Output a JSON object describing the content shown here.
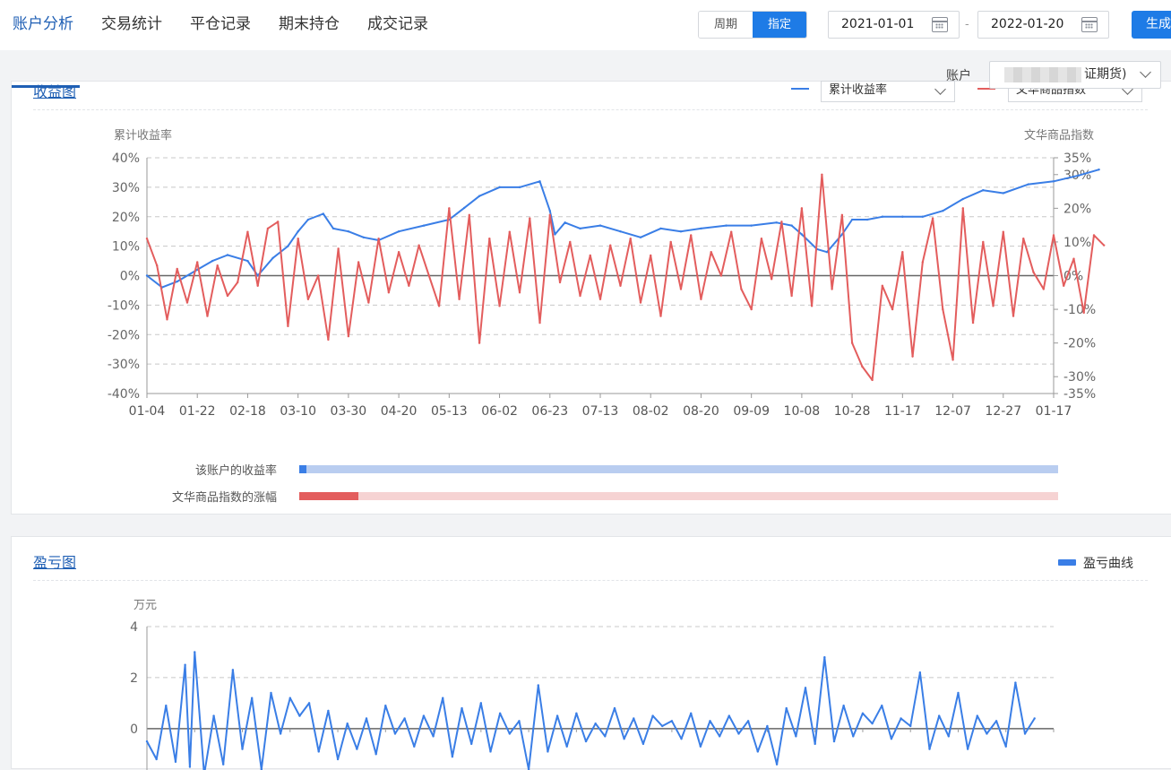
{
  "nav": [
    "账户分析",
    "交易统计",
    "平仓记录",
    "期末持仓",
    "成交记录"
  ],
  "segment": {
    "options": [
      "周期",
      "指定"
    ],
    "selected": "指定"
  },
  "date_from": "2021-01-01",
  "date_to": "2022-01-20",
  "date_sep": "-",
  "generate_label": "生成",
  "account": {
    "label": "账户",
    "value": "证期货)"
  },
  "card1": {
    "title": "收益图",
    "legend_left": "累计收益率",
    "legend_right": "文华商品指数",
    "bars": [
      {
        "label": "该账户的收益率",
        "value": 0.01,
        "fill": "#3a7ee6",
        "track": "#b9cdf0"
      },
      {
        "label": "文华商品指数的涨幅",
        "value": 0.078,
        "fill": "#e35d5d",
        "track": "#f6d3d3"
      }
    ]
  },
  "card2": {
    "title": "盈亏图",
    "legend": "盈亏曲线"
  },
  "colors": {
    "blue": "#3a7ee6",
    "red": "#e35d5d"
  },
  "chart_data": [
    {
      "type": "line",
      "ylabel": "累计收益率",
      "y2label": "文华商品指数",
      "x_ticks": [
        "01-04",
        "01-22",
        "02-18",
        "03-10",
        "03-30",
        "04-20",
        "05-13",
        "06-02",
        "06-23",
        "07-13",
        "08-02",
        "08-20",
        "09-09",
        "10-08",
        "10-28",
        "11-17",
        "12-07",
        "12-27",
        "01-17"
      ],
      "y_ticks": [
        "40%",
        "30%",
        "20%",
        "10%",
        "0%",
        "-10%",
        "-20%",
        "-30%",
        "-40%"
      ],
      "y_range": [
        -40,
        40
      ],
      "y2_ticks": [
        "35%",
        "30%",
        "20%",
        "10%",
        "0%",
        "-10%",
        "-20%",
        "-30%",
        "-35%"
      ],
      "y2_range": [
        -35,
        35
      ],
      "grid": true,
      "series": [
        {
          "name": "累计收益率",
          "axis": "left",
          "color": "#3a7ee6",
          "points": [
            [
              0,
              0
            ],
            [
              0.3,
              -4
            ],
            [
              0.6,
              -2
            ],
            [
              1,
              2
            ],
            [
              1.3,
              5
            ],
            [
              1.6,
              7
            ],
            [
              2,
              5
            ],
            [
              2.2,
              0
            ],
            [
              2.5,
              6
            ],
            [
              2.8,
              10
            ],
            [
              3,
              15
            ],
            [
              3.2,
              19
            ],
            [
              3.5,
              21
            ],
            [
              3.7,
              16
            ],
            [
              4,
              15
            ],
            [
              4.3,
              13
            ],
            [
              4.6,
              12
            ],
            [
              5,
              15
            ],
            [
              5.5,
              17
            ],
            [
              6,
              19
            ],
            [
              6.3,
              23
            ],
            [
              6.6,
              27
            ],
            [
              7,
              30
            ],
            [
              7.4,
              30
            ],
            [
              7.8,
              32
            ],
            [
              8,
              22
            ],
            [
              8.1,
              14
            ],
            [
              8.3,
              18
            ],
            [
              8.6,
              16
            ],
            [
              9,
              17
            ],
            [
              9.4,
              15
            ],
            [
              9.8,
              13
            ],
            [
              10.2,
              16
            ],
            [
              10.6,
              15
            ],
            [
              11,
              16
            ],
            [
              11.5,
              17
            ],
            [
              12,
              17
            ],
            [
              12.5,
              18
            ],
            [
              12.8,
              17
            ],
            [
              13,
              14
            ],
            [
              13.3,
              9
            ],
            [
              13.5,
              8
            ],
            [
              13.8,
              14
            ],
            [
              14,
              19
            ],
            [
              14.3,
              19
            ],
            [
              14.6,
              20
            ],
            [
              15,
              20
            ],
            [
              15.4,
              20
            ],
            [
              15.8,
              22
            ],
            [
              16.2,
              26
            ],
            [
              16.6,
              29
            ],
            [
              17,
              28
            ],
            [
              17.5,
              31
            ],
            [
              18,
              32
            ],
            [
              18.5,
              34
            ],
            [
              18.9,
              36
            ]
          ]
        },
        {
          "name": "文华商品指数",
          "axis": "right",
          "color": "#e35d5d",
          "points": [
            [
              0,
              11
            ],
            [
              0.2,
              3
            ],
            [
              0.4,
              -13
            ],
            [
              0.6,
              2
            ],
            [
              0.8,
              -8
            ],
            [
              1,
              4
            ],
            [
              1.2,
              -12
            ],
            [
              1.4,
              3
            ],
            [
              1.6,
              -6
            ],
            [
              1.8,
              -2
            ],
            [
              2,
              13
            ],
            [
              2.2,
              -3
            ],
            [
              2.4,
              14
            ],
            [
              2.6,
              16
            ],
            [
              2.8,
              -15
            ],
            [
              3,
              11
            ],
            [
              3.2,
              -7
            ],
            [
              3.4,
              0
            ],
            [
              3.6,
              -19
            ],
            [
              3.8,
              8
            ],
            [
              4,
              -18
            ],
            [
              4.2,
              4
            ],
            [
              4.4,
              -8
            ],
            [
              4.6,
              11
            ],
            [
              4.8,
              -5
            ],
            [
              5,
              7
            ],
            [
              5.2,
              -3
            ],
            [
              5.4,
              9
            ],
            [
              5.6,
              0
            ],
            [
              5.8,
              -9
            ],
            [
              6,
              20
            ],
            [
              6.2,
              -7
            ],
            [
              6.4,
              18
            ],
            [
              6.6,
              -20
            ],
            [
              6.8,
              11
            ],
            [
              7,
              -9
            ],
            [
              7.2,
              13
            ],
            [
              7.4,
              -5
            ],
            [
              7.6,
              17
            ],
            [
              7.8,
              -14
            ],
            [
              8,
              18
            ],
            [
              8.2,
              -2
            ],
            [
              8.4,
              10
            ],
            [
              8.6,
              -6
            ],
            [
              8.8,
              6
            ],
            [
              9,
              -7
            ],
            [
              9.2,
              9
            ],
            [
              9.4,
              -3
            ],
            [
              9.6,
              11
            ],
            [
              9.8,
              -8
            ],
            [
              10,
              6
            ],
            [
              10.2,
              -12
            ],
            [
              10.4,
              10
            ],
            [
              10.6,
              -4
            ],
            [
              10.8,
              12
            ],
            [
              11,
              -7
            ],
            [
              11.2,
              7
            ],
            [
              11.4,
              0
            ],
            [
              11.6,
              13
            ],
            [
              11.8,
              -4
            ],
            [
              12,
              -10
            ],
            [
              12.2,
              11
            ],
            [
              12.4,
              -1
            ],
            [
              12.6,
              16
            ],
            [
              12.8,
              -6
            ],
            [
              13,
              20
            ],
            [
              13.2,
              -9
            ],
            [
              13.4,
              30
            ],
            [
              13.6,
              -4
            ],
            [
              13.8,
              18
            ],
            [
              14,
              -20
            ],
            [
              14.2,
              -27
            ],
            [
              14.4,
              -31
            ],
            [
              14.6,
              -3
            ],
            [
              14.8,
              -10
            ],
            [
              15,
              7
            ],
            [
              15.2,
              -24
            ],
            [
              15.4,
              4
            ],
            [
              15.6,
              17
            ],
            [
              15.8,
              -10
            ],
            [
              16,
              -25
            ],
            [
              16.2,
              20
            ],
            [
              16.4,
              -14
            ],
            [
              16.6,
              10
            ],
            [
              16.8,
              -9
            ],
            [
              17,
              13
            ],
            [
              17.2,
              -12
            ],
            [
              17.4,
              11
            ],
            [
              17.6,
              1
            ],
            [
              17.8,
              -4
            ],
            [
              18,
              12
            ],
            [
              18.2,
              -3
            ],
            [
              18.4,
              5
            ],
            [
              18.6,
              -11
            ],
            [
              18.8,
              12
            ],
            [
              19,
              9
            ]
          ]
        }
      ]
    },
    {
      "type": "line",
      "ylabel": "万元",
      "y_ticks": [
        "4",
        "2",
        "0"
      ],
      "y_range": [
        -2.5,
        4
      ],
      "grid": true,
      "series": [
        {
          "name": "盈亏曲线",
          "color": "#3a7ee6",
          "points": [
            [
              0,
              -0.5
            ],
            [
              0.2,
              -1.2
            ],
            [
              0.4,
              0.9
            ],
            [
              0.6,
              -1.3
            ],
            [
              0.8,
              2.5
            ],
            [
              0.9,
              -1.5
            ],
            [
              1,
              3
            ],
            [
              1.2,
              -1.8
            ],
            [
              1.4,
              0.5
            ],
            [
              1.6,
              -1.4
            ],
            [
              1.8,
              2.3
            ],
            [
              2,
              -0.8
            ],
            [
              2.2,
              1.2
            ],
            [
              2.4,
              -1.6
            ],
            [
              2.6,
              1.4
            ],
            [
              2.8,
              -0.2
            ],
            [
              3,
              1.2
            ],
            [
              3.2,
              0.5
            ],
            [
              3.4,
              1.0
            ],
            [
              3.6,
              -0.9
            ],
            [
              3.8,
              0.7
            ],
            [
              4,
              -1.2
            ],
            [
              4.2,
              0.2
            ],
            [
              4.4,
              -0.8
            ],
            [
              4.6,
              0.4
            ],
            [
              4.8,
              -1.0
            ],
            [
              5,
              0.9
            ],
            [
              5.2,
              -0.2
            ],
            [
              5.4,
              0.4
            ],
            [
              5.6,
              -0.7
            ],
            [
              5.8,
              0.5
            ],
            [
              6,
              -0.3
            ],
            [
              6.2,
              1.2
            ],
            [
              6.4,
              -1.1
            ],
            [
              6.6,
              0.8
            ],
            [
              6.8,
              -0.6
            ],
            [
              7,
              1.0
            ],
            [
              7.2,
              -0.9
            ],
            [
              7.4,
              0.6
            ],
            [
              7.6,
              -0.2
            ],
            [
              7.8,
              0.3
            ],
            [
              8,
              -1.6
            ],
            [
              8.2,
              1.7
            ],
            [
              8.4,
              -0.9
            ],
            [
              8.6,
              0.5
            ],
            [
              8.8,
              -0.7
            ],
            [
              9,
              0.6
            ],
            [
              9.2,
              -0.5
            ],
            [
              9.4,
              0.2
            ],
            [
              9.6,
              -0.3
            ],
            [
              9.8,
              0.8
            ],
            [
              10,
              -0.4
            ],
            [
              10.2,
              0.4
            ],
            [
              10.4,
              -0.6
            ],
            [
              10.6,
              0.5
            ],
            [
              10.8,
              0.1
            ],
            [
              11,
              0.3
            ],
            [
              11.2,
              -0.4
            ],
            [
              11.4,
              0.6
            ],
            [
              11.6,
              -0.7
            ],
            [
              11.8,
              0.3
            ],
            [
              12,
              -0.3
            ],
            [
              12.2,
              0.5
            ],
            [
              12.4,
              -0.2
            ],
            [
              12.6,
              0.3
            ],
            [
              12.8,
              -0.9
            ],
            [
              13,
              0.1
            ],
            [
              13.2,
              -1.4
            ],
            [
              13.4,
              0.8
            ],
            [
              13.6,
              -0.3
            ],
            [
              13.8,
              1.6
            ],
            [
              14,
              -0.6
            ],
            [
              14.2,
              2.8
            ],
            [
              14.4,
              -0.5
            ],
            [
              14.6,
              0.9
            ],
            [
              14.8,
              -0.3
            ],
            [
              15,
              0.6
            ],
            [
              15.2,
              0.2
            ],
            [
              15.4,
              0.9
            ],
            [
              15.6,
              -0.4
            ],
            [
              15.8,
              0.4
            ],
            [
              16,
              0.1
            ],
            [
              16.2,
              2.2
            ],
            [
              16.4,
              -0.8
            ],
            [
              16.6,
              0.5
            ],
            [
              16.8,
              -0.3
            ],
            [
              17,
              1.4
            ],
            [
              17.2,
              -0.8
            ],
            [
              17.4,
              0.5
            ],
            [
              17.6,
              -0.2
            ],
            [
              17.8,
              0.3
            ],
            [
              18,
              -0.7
            ],
            [
              18.2,
              1.8
            ],
            [
              18.4,
              -0.2
            ],
            [
              18.6,
              0.4
            ]
          ]
        }
      ]
    }
  ]
}
